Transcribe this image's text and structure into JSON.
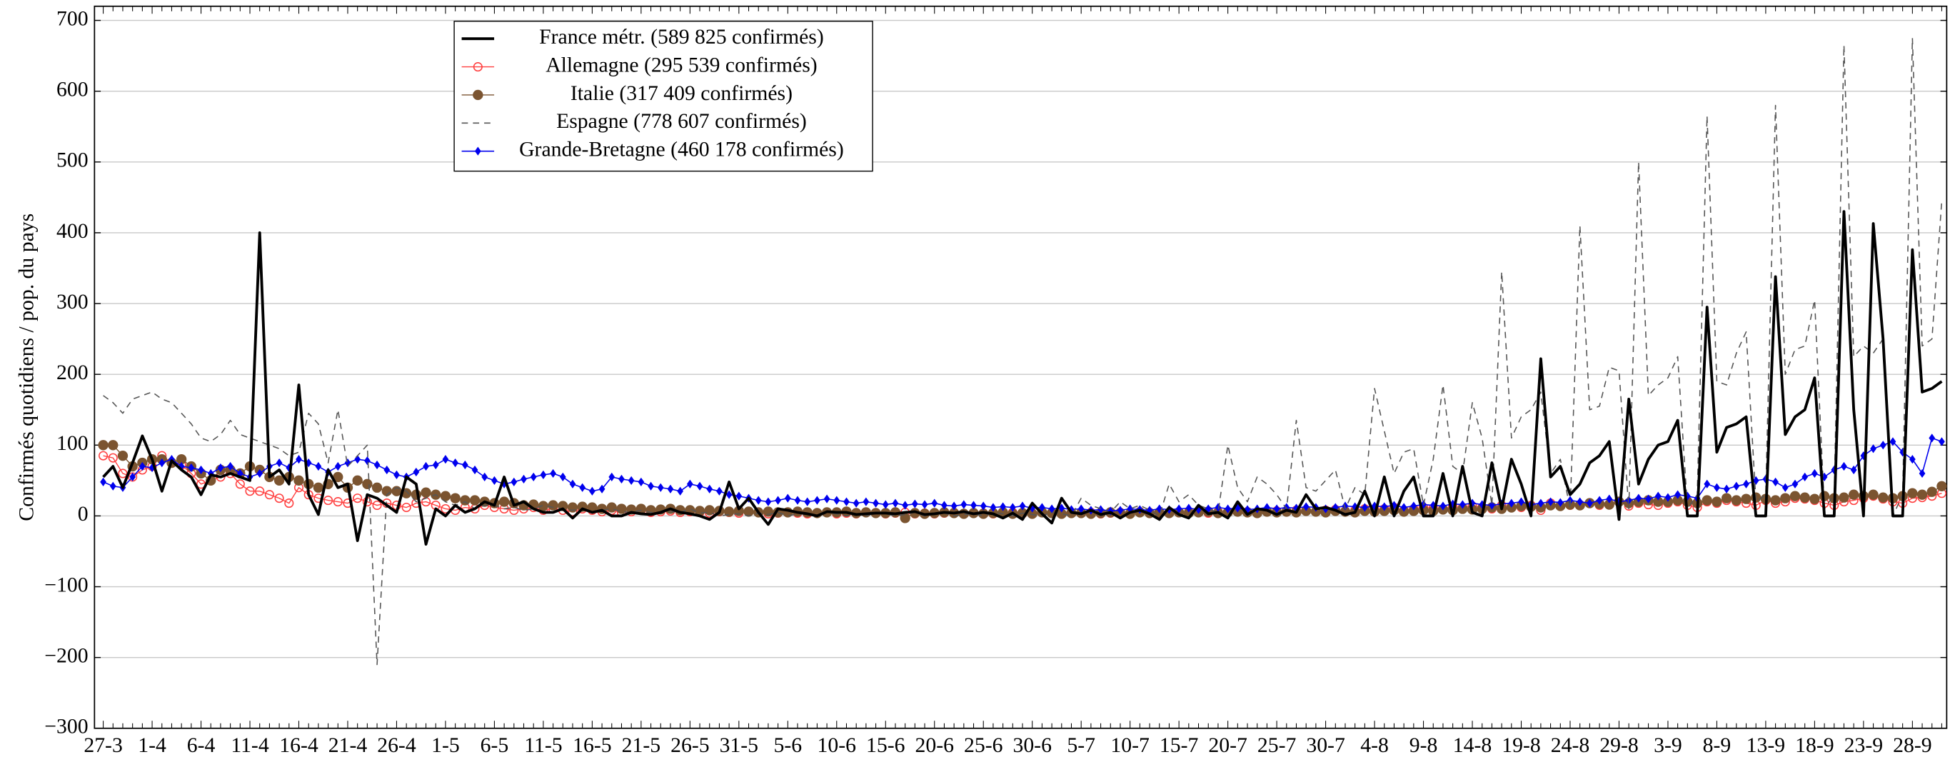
{
  "chart_data": {
    "type": "line",
    "y_label": "Confirmés quotidiens / pop. du pays",
    "categories": [
      "27-3",
      null,
      null,
      null,
      null,
      "1-4",
      null,
      null,
      null,
      null,
      "6-4",
      null,
      null,
      null,
      null,
      "11-4",
      null,
      null,
      null,
      null,
      "16-4",
      null,
      null,
      null,
      null,
      "21-4",
      null,
      null,
      null,
      null,
      "26-4",
      null,
      null,
      null,
      null,
      "1-5",
      null,
      null,
      null,
      null,
      "6-5",
      null,
      null,
      null,
      null,
      "11-5",
      null,
      null,
      null,
      null,
      "16-5",
      null,
      null,
      null,
      null,
      "21-5",
      null,
      null,
      null,
      null,
      "26-5",
      null,
      null,
      null,
      null,
      "31-5",
      null,
      null,
      null,
      null,
      "5-6",
      null,
      null,
      null,
      null,
      "10-6",
      null,
      null,
      null,
      null,
      "15-6",
      null,
      null,
      null,
      null,
      "20-6",
      null,
      null,
      null,
      null,
      "25-6",
      null,
      null,
      null,
      null,
      "30-6",
      null,
      null,
      null,
      null,
      "5-7",
      null,
      null,
      null,
      null,
      "10-7",
      null,
      null,
      null,
      null,
      "15-7",
      null,
      null,
      null,
      null,
      "20-7",
      null,
      null,
      null,
      null,
      "25-7",
      null,
      null,
      null,
      null,
      "30-7",
      null,
      null,
      null,
      null,
      "4-8",
      null,
      null,
      null,
      null,
      "9-8",
      null,
      null,
      null,
      null,
      "14-8",
      null,
      null,
      null,
      null,
      "19-8",
      null,
      null,
      null,
      null,
      "24-8",
      null,
      null,
      null,
      null,
      "29-8",
      null,
      null,
      null,
      null,
      "3-9",
      null,
      null,
      null,
      null,
      "8-9",
      null,
      null,
      null,
      null,
      "13-9",
      null,
      null,
      null,
      null,
      "18-9",
      null,
      null,
      null,
      null,
      "23-9",
      null,
      null,
      null,
      null,
      "28-9",
      null,
      null,
      null
    ],
    "ylim": [
      -300,
      720
    ],
    "yticks": [
      {
        "value": -300,
        "label": "−300"
      },
      {
        "value": -200,
        "label": "−200"
      },
      {
        "value": -100,
        "label": "−100"
      },
      0,
      100,
      200,
      300,
      400,
      500,
      600,
      700
    ],
    "grid": true,
    "legend": "upper left",
    "series": [
      {
        "name": "France métr. (589 825 confirmés)",
        "color": "#000000",
        "width": 2.2,
        "linestyle": "solid",
        "marker": "none",
        "values": [
          55,
          70,
          40,
          75,
          113,
          80,
          35,
          78,
          65,
          55,
          30,
          58,
          55,
          60,
          55,
          50,
          400,
          55,
          65,
          45,
          185,
          30,
          2,
          65,
          40,
          45,
          -35,
          30,
          25,
          15,
          5,
          55,
          45,
          -40,
          10,
          0,
          15,
          5,
          10,
          20,
          15,
          55,
          15,
          20,
          10,
          5,
          5,
          10,
          -3,
          10,
          5,
          8,
          0,
          0,
          5,
          3,
          2,
          5,
          10,
          5,
          3,
          0,
          -5,
          5,
          48,
          10,
          25,
          5,
          -12,
          10,
          8,
          5,
          3,
          0,
          6,
          5,
          5,
          2,
          3,
          4,
          4,
          3,
          5,
          6,
          2,
          3,
          5,
          4,
          6,
          3,
          5,
          3,
          -3,
          4,
          -5,
          18,
          3,
          -10,
          25,
          5,
          3,
          8,
          2,
          5,
          -3,
          5,
          8,
          3,
          -5,
          12,
          2,
          -3,
          15,
          3,
          5,
          -3,
          20,
          2,
          10,
          8,
          2,
          8,
          5,
          30,
          10,
          12,
          8,
          2,
          5,
          35,
          0,
          55,
          0,
          35,
          55,
          0,
          0,
          60,
          0,
          70,
          5,
          0,
          75,
          10,
          80,
          45,
          0,
          222,
          55,
          70,
          30,
          45,
          75,
          85,
          105,
          -5,
          165,
          45,
          80,
          100,
          105,
          135,
          0,
          0,
          295,
          90,
          125,
          130,
          140,
          0,
          0,
          338,
          115,
          140,
          150,
          195,
          0,
          0,
          430,
          150,
          0,
          413,
          250,
          0,
          0,
          376,
          175,
          180,
          190
        ]
      },
      {
        "name": "Allemagne (295 539 confirmés)",
        "color": "#ff4040",
        "width": 0.8,
        "linestyle": "solid",
        "marker": "circle-open",
        "values": [
          85,
          82,
          60,
          55,
          65,
          70,
          85,
          75,
          72,
          60,
          45,
          50,
          55,
          60,
          45,
          35,
          35,
          30,
          25,
          18,
          40,
          30,
          25,
          22,
          20,
          18,
          25,
          20,
          15,
          18,
          15,
          12,
          18,
          20,
          15,
          10,
          8,
          12,
          10,
          15,
          12,
          10,
          8,
          10,
          12,
          8,
          10,
          8,
          6,
          10,
          8,
          6,
          8,
          5,
          6,
          8,
          5,
          6,
          7,
          5,
          6,
          5,
          4,
          6,
          5,
          4,
          6,
          5,
          3,
          4,
          5,
          4,
          3,
          4,
          5,
          3,
          4,
          3,
          5,
          4,
          3,
          4,
          5,
          3,
          4,
          3,
          4,
          5,
          3,
          4,
          4,
          3,
          4,
          5,
          3,
          4,
          5,
          4,
          3,
          5,
          4,
          5,
          3,
          4,
          5,
          4,
          6,
          5,
          4,
          5,
          5,
          6,
          5,
          4,
          6,
          5,
          7,
          6,
          5,
          6,
          7,
          6,
          8,
          7,
          6,
          8,
          9,
          7,
          8,
          10,
          9,
          10,
          12,
          8,
          10,
          12,
          11,
          10,
          13,
          12,
          14,
          12,
          10,
          15,
          13,
          12,
          15,
          8,
          18,
          14,
          15,
          16,
          18,
          15,
          17,
          20,
          14,
          18,
          16,
          15,
          18,
          20,
          15,
          12,
          20,
          18,
          22,
          20,
          18,
          15,
          22,
          18,
          20,
          25,
          24,
          22,
          18,
          15,
          20,
          22,
          25,
          28,
          24,
          20,
          18,
          25,
          26,
          28,
          32
        ]
      },
      {
        "name": "Italie (317 409 confirmés)",
        "color": "#7b5430",
        "width": 0.8,
        "linestyle": "solid",
        "marker": "circle",
        "values": [
          100,
          100,
          85,
          70,
          75,
          80,
          80,
          75,
          80,
          70,
          60,
          50,
          65,
          65,
          60,
          70,
          65,
          55,
          50,
          55,
          50,
          45,
          40,
          45,
          55,
          40,
          50,
          45,
          40,
          35,
          35,
          32,
          30,
          33,
          30,
          28,
          25,
          22,
          22,
          20,
          18,
          20,
          18,
          15,
          16,
          14,
          15,
          14,
          12,
          13,
          12,
          10,
          12,
          10,
          9,
          10,
          8,
          9,
          10,
          8,
          8,
          7,
          8,
          7,
          6,
          7,
          6,
          5,
          6,
          5,
          5,
          6,
          5,
          4,
          5,
          5,
          6,
          4,
          5,
          4,
          4,
          5,
          -3,
          4,
          3,
          4,
          5,
          4,
          3,
          4,
          3,
          4,
          5,
          3,
          4,
          3,
          5,
          4,
          3,
          4,
          4,
          3,
          4,
          5,
          4,
          3,
          5,
          4,
          5,
          4,
          5,
          4,
          5,
          6,
          4,
          5,
          6,
          5,
          4,
          6,
          5,
          6,
          5,
          7,
          6,
          5,
          7,
          6,
          5,
          7,
          6,
          7,
          8,
          6,
          7,
          8,
          7,
          9,
          8,
          10,
          9,
          10,
          12,
          10,
          12,
          14,
          13,
          12,
          15,
          14,
          16,
          15,
          18,
          17,
          16,
          20,
          18,
          20,
          22,
          20,
          20,
          22,
          20,
          18,
          22,
          20,
          25,
          22,
          24,
          26,
          24,
          22,
          25,
          28,
          26,
          24,
          28,
          25,
          26,
          30,
          28,
          30,
          26,
          25,
          28,
          32,
          30,
          34,
          42
        ]
      },
      {
        "name": "Espagne (778 607 confirmés)",
        "color": "#555555",
        "width": 0.9,
        "linestyle": "dashed",
        "marker": "none",
        "values": [
          170,
          160,
          145,
          165,
          170,
          175,
          165,
          160,
          145,
          130,
          110,
          105,
          115,
          135,
          115,
          110,
          105,
          100,
          95,
          85,
          90,
          145,
          130,
          75,
          150,
          70,
          85,
          100,
          -210,
          30,
          40,
          35,
          20,
          25,
          30,
          20,
          15,
          20,
          10,
          15,
          15,
          10,
          12,
          8,
          10,
          15,
          12,
          10,
          8,
          10,
          5,
          8,
          10,
          6,
          5,
          8,
          5,
          4,
          6,
          5,
          10,
          4,
          5,
          0,
          2,
          3,
          0,
          4,
          2,
          5,
          0,
          3,
          2,
          0,
          5,
          3,
          0,
          2,
          0,
          4,
          3,
          0,
          2,
          5,
          0,
          3,
          4,
          0,
          2,
          3,
          0,
          5,
          3,
          0,
          4,
          2,
          0,
          5,
          3,
          0,
          25,
          15,
          10,
          5,
          20,
          10,
          15,
          8,
          0,
          45,
          20,
          30,
          15,
          10,
          5,
          100,
          40,
          20,
          55,
          45,
          30,
          10,
          135,
          40,
          35,
          50,
          65,
          10,
          40,
          30,
          180,
          120,
          60,
          90,
          95,
          15,
          80,
          185,
          70,
          60,
          160,
          110,
          15,
          345,
          110,
          140,
          150,
          175,
          60,
          80,
          10,
          410,
          150,
          155,
          210,
          205,
          10,
          500,
          170,
          185,
          195,
          225,
          10,
          30,
          565,
          190,
          185,
          230,
          260,
          20,
          30,
          580,
          200,
          235,
          240,
          305,
          10,
          30,
          665,
          225,
          240,
          230,
          250,
          0,
          30,
          675,
          240,
          250,
          445
        ]
      },
      {
        "name": "Grande-Bretagne (460 178 confirmés)",
        "color": "#0000ee",
        "width": 0.9,
        "linestyle": "solid",
        "marker": "diamond",
        "values": [
          48,
          42,
          40,
          55,
          70,
          68,
          75,
          80,
          70,
          68,
          65,
          60,
          68,
          70,
          60,
          55,
          60,
          70,
          75,
          68,
          80,
          75,
          70,
          62,
          70,
          75,
          80,
          78,
          72,
          65,
          58,
          55,
          62,
          70,
          72,
          80,
          75,
          72,
          65,
          55,
          50,
          45,
          48,
          52,
          55,
          58,
          60,
          55,
          45,
          40,
          35,
          38,
          55,
          52,
          50,
          48,
          42,
          40,
          38,
          35,
          45,
          42,
          38,
          35,
          30,
          28,
          25,
          22,
          20,
          22,
          25,
          22,
          20,
          22,
          24,
          22,
          20,
          18,
          20,
          18,
          16,
          18,
          15,
          17,
          16,
          18,
          15,
          14,
          16,
          15,
          14,
          12,
          13,
          12,
          14,
          11,
          12,
          10,
          11,
          9,
          10,
          8,
          9,
          7,
          8,
          10,
          9,
          8,
          10,
          9,
          10,
          11,
          9,
          10,
          12,
          10,
          11,
          9,
          10,
          12,
          10,
          12,
          11,
          13,
          12,
          10,
          12,
          14,
          13,
          12,
          14,
          13,
          15,
          12,
          14,
          16,
          15,
          14,
          17,
          16,
          18,
          16,
          15,
          17,
          18,
          20,
          16,
          18,
          20,
          19,
          22,
          20,
          18,
          22,
          24,
          20,
          22,
          25,
          24,
          28,
          26,
          30,
          28,
          25,
          45,
          40,
          38,
          42,
          45,
          50,
          52,
          48,
          40,
          45,
          55,
          60,
          55,
          65,
          70,
          65,
          85,
          95,
          100,
          105,
          90,
          80,
          60,
          110,
          105
        ]
      }
    ]
  }
}
